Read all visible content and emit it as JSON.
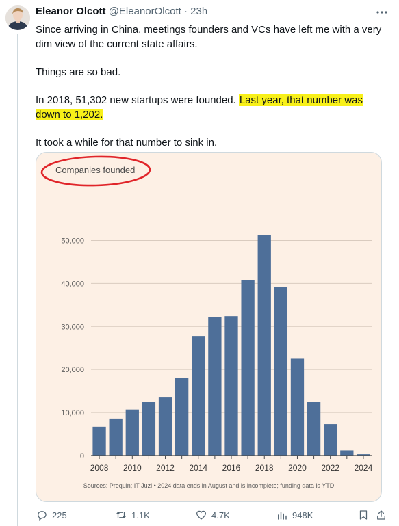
{
  "tweet": {
    "author_name": "Eleanor Olcott",
    "handle": "@EleanorOlcott",
    "separator": "·",
    "time": "23h",
    "paragraphs": [
      "Since arriving in China, meetings founders and VCs have left me with a very dim view of the current state affairs.",
      "Things are so bad."
    ],
    "para3_before": "In 2018, 51,302 new startups were founded. ",
    "para3_highlight": "Last year, that number was down to 1,202.",
    "para4": "It took a while for that number to sink in."
  },
  "chart_data": {
    "type": "bar",
    "title": "Companies founded",
    "categories": [
      "2008",
      "2009",
      "2010",
      "2011",
      "2012",
      "2013",
      "2014",
      "2015",
      "2016",
      "2017",
      "2018",
      "2019",
      "2020",
      "2021",
      "2022",
      "2023",
      "2024"
    ],
    "values": [
      6700,
      8600,
      10700,
      12500,
      13500,
      18000,
      27800,
      32200,
      32400,
      40700,
      51302,
      39200,
      22500,
      12500,
      7300,
      1202,
      300
    ],
    "xticks": [
      "2008",
      "2010",
      "2012",
      "2014",
      "2016",
      "2018",
      "2020",
      "2022",
      "2024"
    ],
    "yticks": [
      0,
      10000,
      20000,
      30000,
      40000,
      50000
    ],
    "ytick_labels": [
      "0",
      "10,000",
      "20,000",
      "30,000",
      "40,000",
      "50,000"
    ],
    "ylim": [
      0,
      55000
    ],
    "grid": true,
    "bar_color": "#4e6f99",
    "sources": "Sources: Prequin; IT Juzi • 2024 data ends in August and is incomplete; funding data is YTD"
  },
  "actions": {
    "replies": "225",
    "reposts": "1.1K",
    "likes": "4.7K",
    "views": "948K"
  },
  "colors": {
    "highlight": "#f8f019",
    "annotation_circle": "#e0252a",
    "card_bg": "#fdf0e5"
  }
}
